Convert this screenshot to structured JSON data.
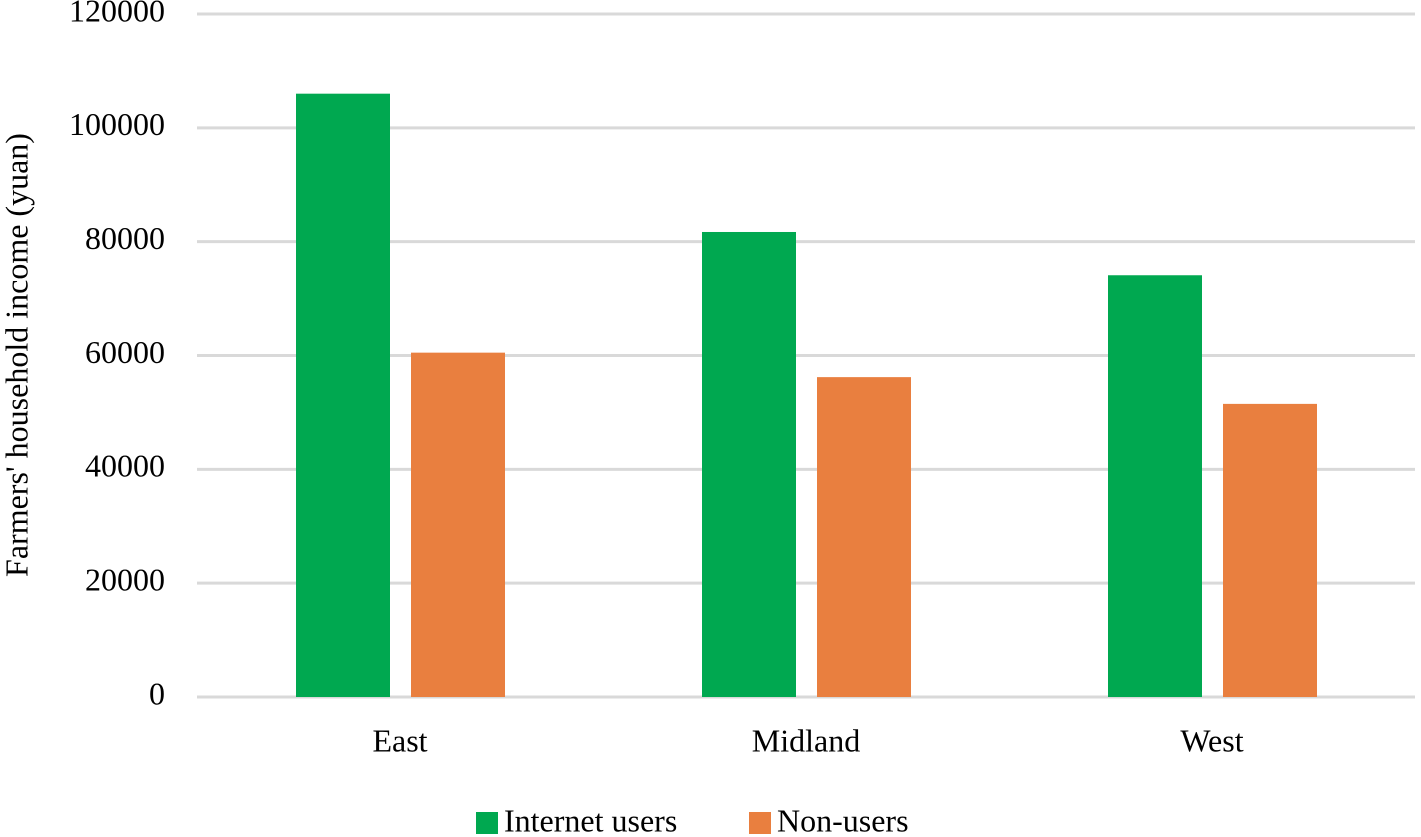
{
  "chart_data": {
    "type": "bar",
    "y_axis_label": "Farmers' household income  (yuan)",
    "categories": [
      "East",
      "Midland",
      "West"
    ],
    "series": [
      {
        "name": "Internet users",
        "color": "#00a850",
        "values": [
          106000,
          81700,
          74100
        ]
      },
      {
        "name": "Non-users",
        "color": "#e97f3f",
        "values": [
          60500,
          56200,
          51500
        ]
      }
    ],
    "ylim": [
      0,
      120000
    ],
    "yticks": [
      0,
      20000,
      40000,
      60000,
      80000,
      100000,
      120000
    ],
    "grid": true,
    "legend": "bottom"
  }
}
